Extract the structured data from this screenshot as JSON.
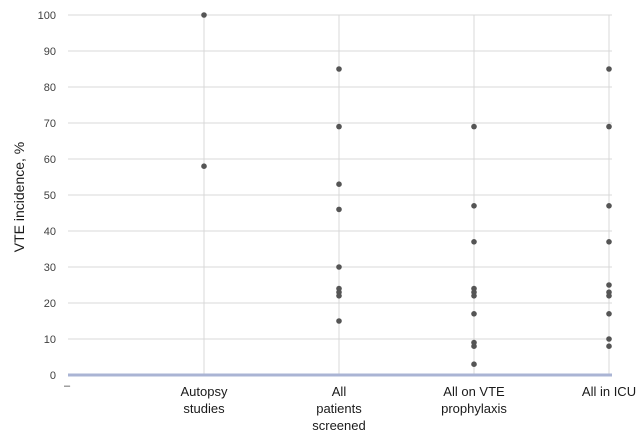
{
  "chart_data": {
    "type": "scatter",
    "ylabel": "VTE incidence, %",
    "xlabel": "",
    "ylim": [
      0,
      100
    ],
    "yticks": [
      "0",
      "10",
      "20",
      "30",
      "40",
      "50",
      "60",
      "70",
      "80",
      "90",
      "100"
    ],
    "grid": "horizontal and vertical",
    "stray_label": "–",
    "categories": [
      {
        "lines": [
          "Autopsy",
          "studies"
        ]
      },
      {
        "lines": [
          "All",
          "patients",
          "screened"
        ]
      },
      {
        "lines": [
          "All on VTE",
          "prophylaxis"
        ]
      },
      {
        "lines": [
          "All in ICU"
        ]
      }
    ],
    "series": [
      {
        "points": [
          {
            "category": 0,
            "values": [
              100,
              58
            ]
          },
          {
            "category": 1,
            "values": [
              85,
              69,
              53,
              46,
              30,
              24,
              23,
              22,
              15
            ]
          },
          {
            "category": 2,
            "values": [
              69,
              47,
              37,
              24,
              23,
              22,
              17,
              9,
              8,
              3
            ]
          },
          {
            "category": 3,
            "values": [
              85,
              69,
              47,
              37,
              25,
              23,
              22,
              17,
              10,
              8
            ]
          }
        ]
      }
    ],
    "colors": {
      "marker": "#555555",
      "grid": "#d9d9d9",
      "baseline": "#aab4d4"
    }
  }
}
